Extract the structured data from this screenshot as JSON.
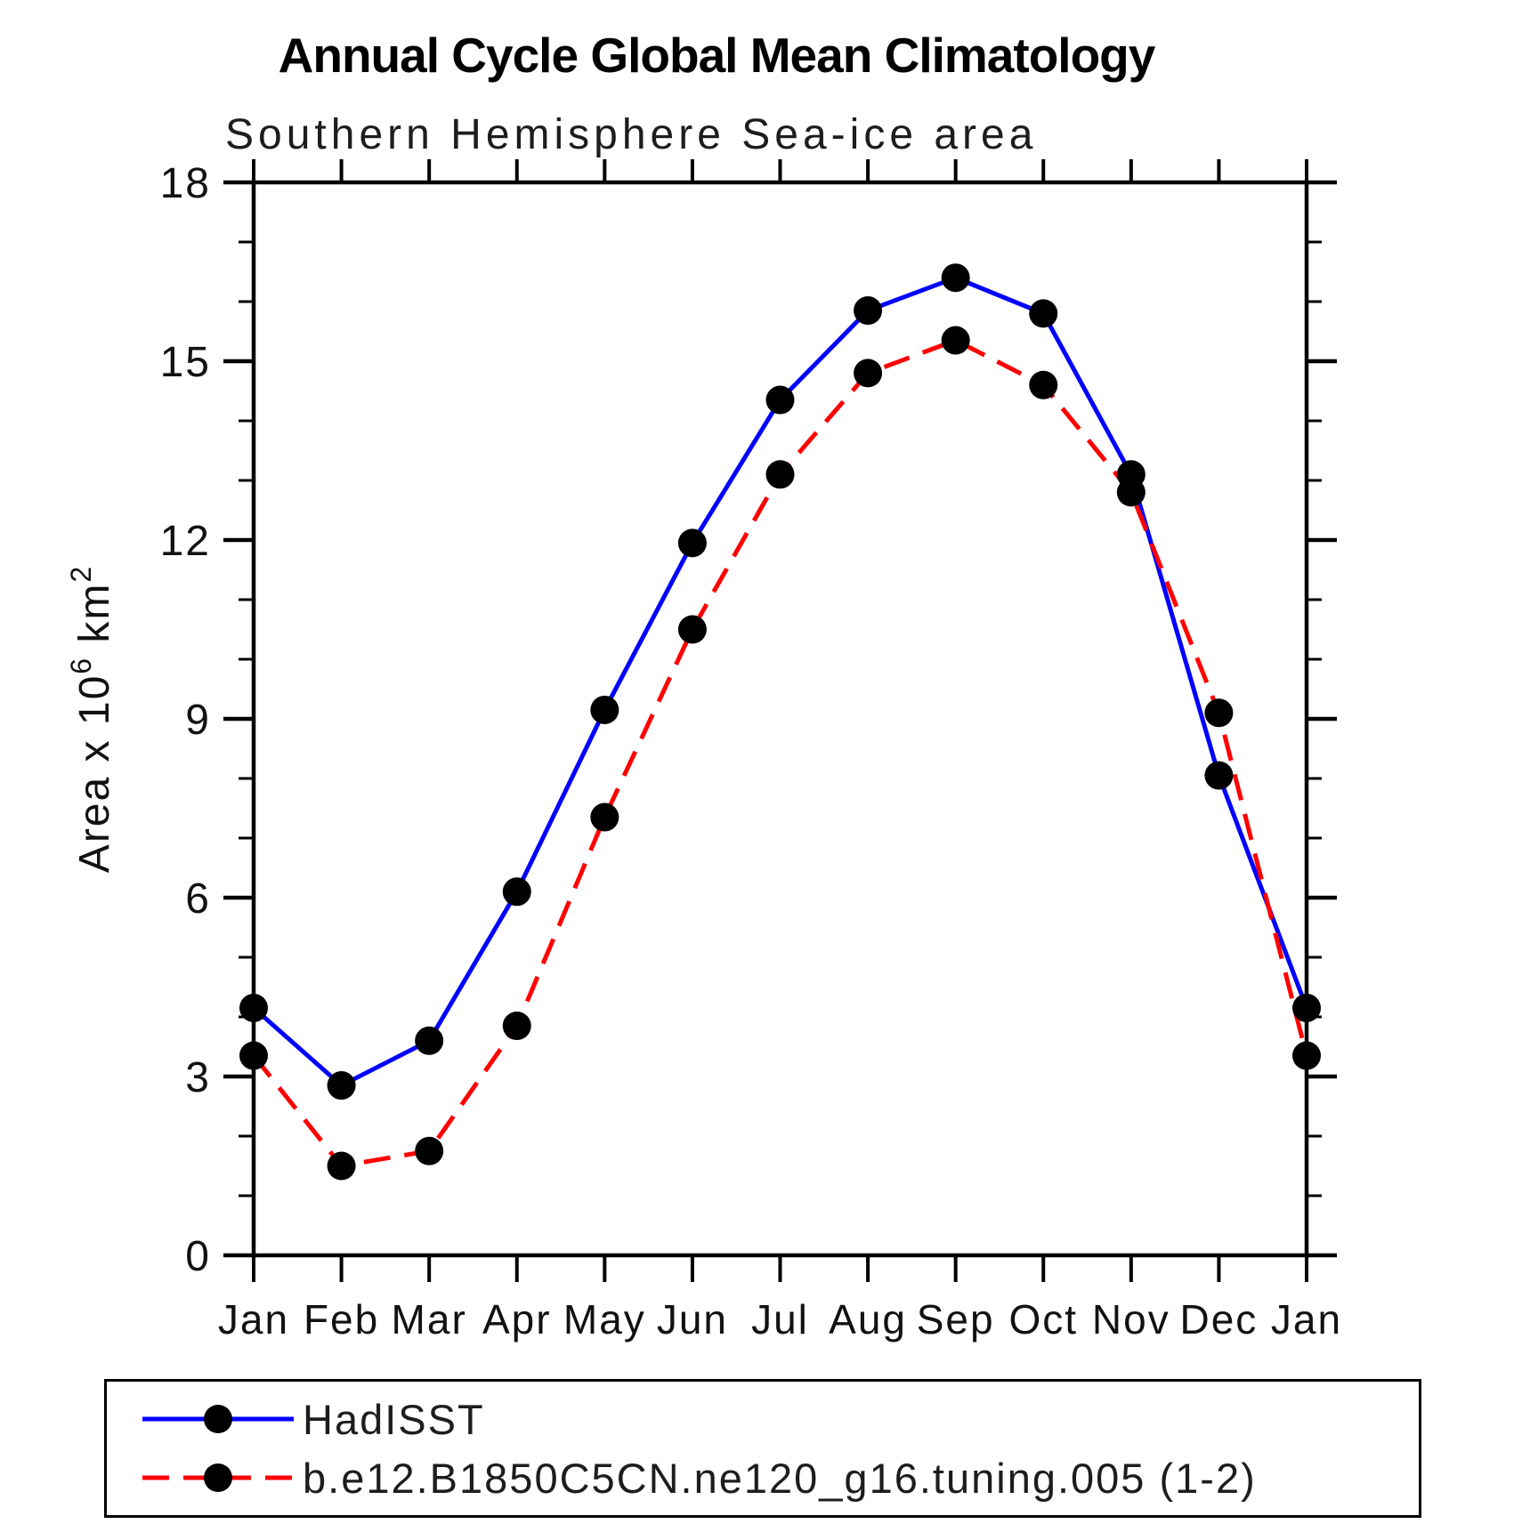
{
  "title": "Annual Cycle Global Mean Climatology",
  "subtitle": "Southern Hemisphere Sea-ice area",
  "chart_data": {
    "type": "line",
    "categories": [
      "Jan",
      "Feb",
      "Mar",
      "Apr",
      "May",
      "Jun",
      "Jul",
      "Aug",
      "Sep",
      "Oct",
      "Nov",
      "Dec",
      "Jan"
    ],
    "series": [
      {
        "name": "HadISST",
        "color": "#0000ff",
        "style": "solid",
        "marker": "circle",
        "marker_color": "#000000",
        "values": [
          4.15,
          2.85,
          3.6,
          6.1,
          9.15,
          11.95,
          14.35,
          15.85,
          16.4,
          15.8,
          13.1,
          8.05,
          4.15
        ]
      },
      {
        "name": "b.e12.B1850C5CN.ne120_g16.tuning.005 (1-2)",
        "color": "#ff0000",
        "style": "dashed",
        "marker": "circle",
        "marker_color": "#000000",
        "values": [
          3.35,
          1.5,
          1.75,
          3.85,
          7.35,
          10.5,
          13.1,
          14.8,
          15.35,
          14.6,
          12.8,
          9.1,
          3.35
        ]
      }
    ],
    "xlabel": "",
    "ylabel": "Area x 10^6 km^2",
    "ylim": [
      0,
      18
    ],
    "yticks_major": [
      0,
      3,
      6,
      9,
      12,
      15,
      18
    ],
    "ytick_minor_step": 1,
    "grid": false,
    "legend_position": "bottom-box",
    "axis_color": "#000000"
  }
}
